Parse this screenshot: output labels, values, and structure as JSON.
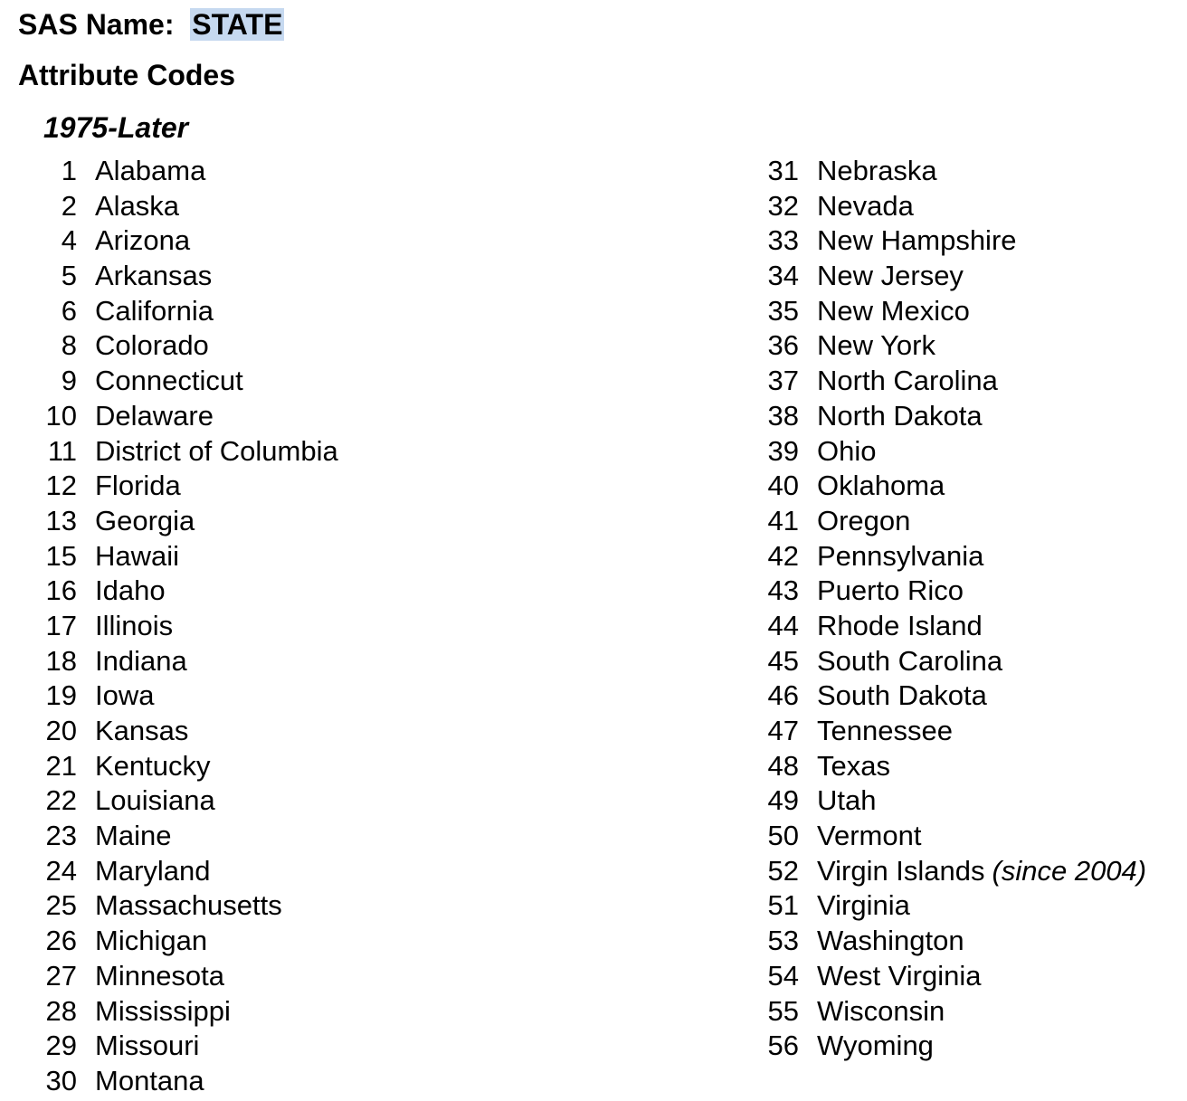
{
  "header": {
    "sas_label": "SAS Name:",
    "sas_value": "STATE",
    "attr_title": "Attribute Codes",
    "period": "1975-Later",
    "highlight_color": "#c6d9f0"
  },
  "codes_left": [
    {
      "code": "1",
      "name": "Alabama"
    },
    {
      "code": "2",
      "name": "Alaska"
    },
    {
      "code": "4",
      "name": "Arizona"
    },
    {
      "code": "5",
      "name": "Arkansas"
    },
    {
      "code": "6",
      "name": "California"
    },
    {
      "code": "8",
      "name": "Colorado"
    },
    {
      "code": "9",
      "name": "Connecticut"
    },
    {
      "code": "10",
      "name": "Delaware"
    },
    {
      "code": "11",
      "name": "District of Columbia"
    },
    {
      "code": "12",
      "name": "Florida"
    },
    {
      "code": "13",
      "name": "Georgia"
    },
    {
      "code": "15",
      "name": "Hawaii"
    },
    {
      "code": "16",
      "name": "Idaho"
    },
    {
      "code": "17",
      "name": "Illinois"
    },
    {
      "code": "18",
      "name": "Indiana"
    },
    {
      "code": "19",
      "name": "Iowa"
    },
    {
      "code": "20",
      "name": "Kansas"
    },
    {
      "code": "21",
      "name": "Kentucky"
    },
    {
      "code": "22",
      "name": "Louisiana"
    },
    {
      "code": "23",
      "name": "Maine"
    },
    {
      "code": "24",
      "name": "Maryland"
    },
    {
      "code": "25",
      "name": "Massachusetts"
    },
    {
      "code": "26",
      "name": "Michigan"
    },
    {
      "code": "27",
      "name": "Minnesota"
    },
    {
      "code": "28",
      "name": "Mississippi"
    },
    {
      "code": "29",
      "name": "Missouri"
    },
    {
      "code": "30",
      "name": "Montana"
    }
  ],
  "codes_right": [
    {
      "code": "31",
      "name": "Nebraska"
    },
    {
      "code": "32",
      "name": "Nevada"
    },
    {
      "code": "33",
      "name": "New Hampshire"
    },
    {
      "code": "34",
      "name": "New Jersey"
    },
    {
      "code": "35",
      "name": "New Mexico"
    },
    {
      "code": "36",
      "name": "New York"
    },
    {
      "code": "37",
      "name": "North Carolina"
    },
    {
      "code": "38",
      "name": "North Dakota"
    },
    {
      "code": "39",
      "name": "Ohio"
    },
    {
      "code": "40",
      "name": "Oklahoma"
    },
    {
      "code": "41",
      "name": "Oregon"
    },
    {
      "code": "42",
      "name": "Pennsylvania"
    },
    {
      "code": "43",
      "name": "Puerto Rico"
    },
    {
      "code": "44",
      "name": "Rhode Island"
    },
    {
      "code": "45",
      "name": "South Carolina"
    },
    {
      "code": "46",
      "name": "South Dakota"
    },
    {
      "code": "47",
      "name": "Tennessee"
    },
    {
      "code": "48",
      "name": "Texas"
    },
    {
      "code": "49",
      "name": "Utah"
    },
    {
      "code": "50",
      "name": "Vermont"
    },
    {
      "code": "52",
      "name": "Virgin Islands",
      "note": "(since 2004)"
    },
    {
      "code": "51",
      "name": "Virginia"
    },
    {
      "code": "53",
      "name": "Washington"
    },
    {
      "code": "54",
      "name": "West Virginia"
    },
    {
      "code": "55",
      "name": "Wisconsin"
    },
    {
      "code": "56",
      "name": "Wyoming"
    }
  ]
}
